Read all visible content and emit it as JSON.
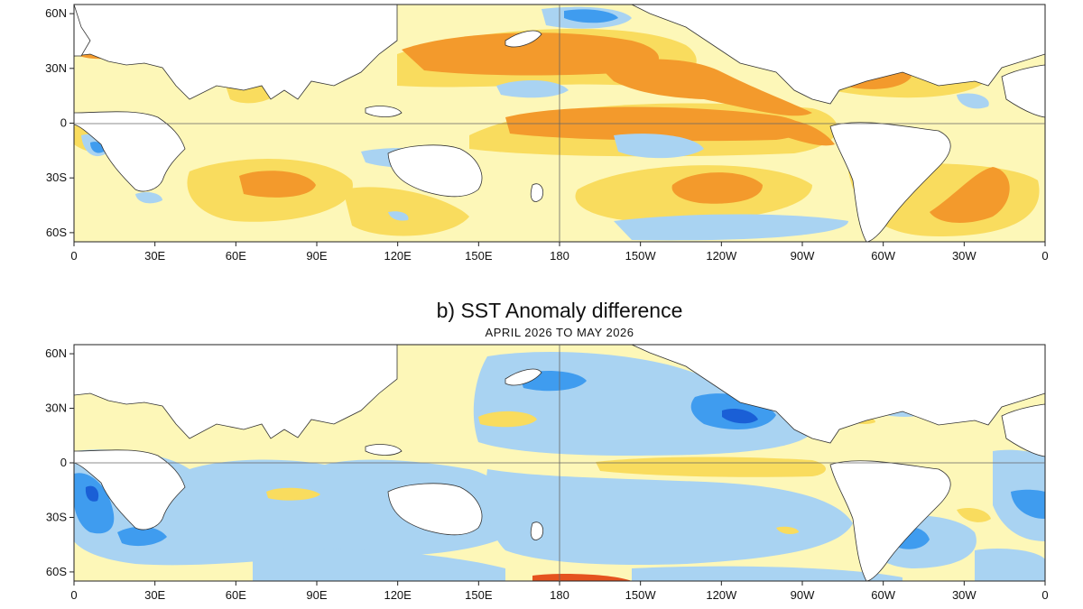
{
  "colors": {
    "ocean_base": "#fdf7b8",
    "warm_1": "#f9dc5e",
    "warm_2": "#f39a2c",
    "warm_3": "#e5531f",
    "cool_1": "#a9d3f2",
    "cool_2": "#3f9cef",
    "cool_3": "#1a5fd6",
    "land": "#ffffff",
    "equator_line": "#666666"
  },
  "panel_a": {
    "x_ticks": [
      "0",
      "30E",
      "60E",
      "90E",
      "120E",
      "150E",
      "180",
      "150W",
      "120W",
      "90W",
      "60W",
      "30W",
      "0"
    ],
    "y_ticks": [
      "60N",
      "30N",
      "0",
      "30S",
      "60S"
    ]
  },
  "panel_b": {
    "title": "b) SST Anomaly difference",
    "subtitle": "APRIL 2026 TO MAY 2026",
    "x_ticks": [
      "0",
      "30E",
      "60E",
      "90E",
      "120E",
      "150E",
      "180",
      "150W",
      "120W",
      "90W",
      "60W",
      "30W",
      "0"
    ],
    "y_ticks": [
      "60N",
      "30N",
      "0",
      "30S",
      "60S"
    ]
  }
}
